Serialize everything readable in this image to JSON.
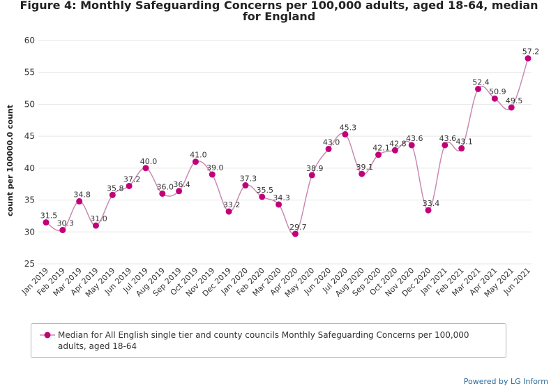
{
  "title_line1": "Figure 4: Monthly Safeguarding Concerns per 100,000 adults, aged 18-64, median",
  "title_line2": "for England",
  "credit": "Powered by LG Inform",
  "colors": {
    "series": "#c2007a",
    "line": "#c88bb0",
    "grid": "#e6e6e6",
    "axis": "#333333"
  },
  "chart_data": {
    "type": "line",
    "title": "Figure 4: Monthly Safeguarding Concerns per 100,000 adults, aged 18-64, median for England",
    "xlabel": "",
    "ylabel": "count per 100000.0 count",
    "ylim": [
      25,
      60
    ],
    "yticks": [
      25,
      30,
      35,
      40,
      45,
      50,
      55,
      60
    ],
    "grid": true,
    "legend_position": "bottom",
    "categories": [
      "Jan 2019",
      "Feb 2019",
      "Mar 2019",
      "Apr 2019",
      "May 2019",
      "Jun 2019",
      "Jul 2019",
      "Aug 2019",
      "Sep 2019",
      "Oct 2019",
      "Nov 2019",
      "Dec 2019",
      "Jan 2020",
      "Feb 2020",
      "Mar 2020",
      "Apr 2020",
      "May 2020",
      "Jun 2020",
      "Jul 2020",
      "Aug 2020",
      "Sep 2020",
      "Oct 2020",
      "Nov 2020",
      "Dec 2020",
      "Jan 2021",
      "Feb 2021",
      "Mar 2021",
      "Apr 2021",
      "May 2021",
      "Jun 2021"
    ],
    "series": [
      {
        "name": "Median for All English single tier and county councils Monthly Safeguarding Concerns per 100,000 adults, aged 18-64",
        "values": [
          31.5,
          30.3,
          34.8,
          31.0,
          35.8,
          37.2,
          40.0,
          36.0,
          36.4,
          41.0,
          39.0,
          33.2,
          37.3,
          35.5,
          34.3,
          29.7,
          38.9,
          43.0,
          45.3,
          39.1,
          42.1,
          42.8,
          43.6,
          33.4,
          43.6,
          43.1,
          52.4,
          50.9,
          49.5,
          57.2
        ],
        "labels": [
          "31.5",
          "30.3",
          "34.8",
          "31.0",
          "35.8",
          "37.2",
          "40.0",
          "36.0",
          "36.4",
          "41.0",
          "39.0",
          "33.2",
          "37.3",
          "35.5",
          "34.3",
          "29.7",
          "38.9",
          "43.0",
          "45.3",
          "39.1",
          "42.1",
          "42.8",
          "43.6",
          "33.4",
          "43.6",
          "43.1",
          "52.4",
          "50.9",
          "49.5",
          "57.2"
        ]
      }
    ]
  }
}
